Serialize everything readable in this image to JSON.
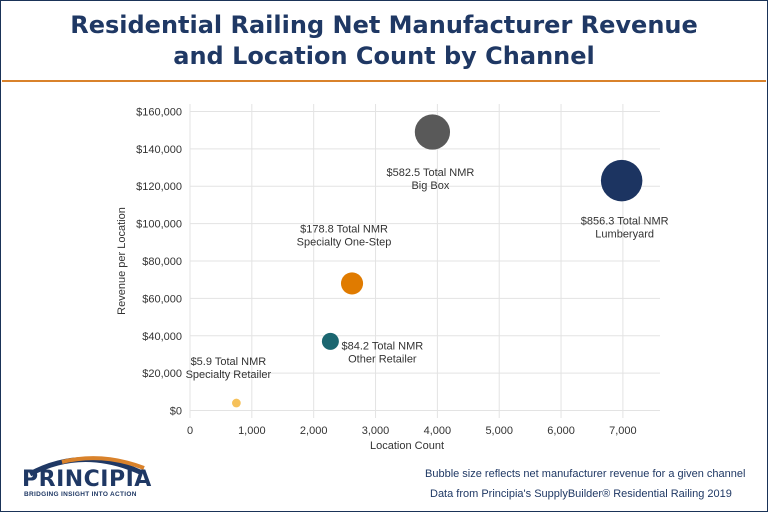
{
  "header": {
    "title_line1": "Residential Railing Net Manufacturer Revenue",
    "title_line2": "and Location Count by Channel"
  },
  "colors": {
    "title": "#1f3864",
    "rule": "#d9822b",
    "grid": "#e3e3e3",
    "text": "#333333"
  },
  "chart_data": {
    "type": "scatter",
    "xlabel": "Location Count",
    "ylabel": "Revenue per Location",
    "xlim": [
      0,
      7600
    ],
    "ylim": [
      -4000,
      164000
    ],
    "x_ticks": [
      0,
      1000,
      2000,
      3000,
      4000,
      5000,
      6000,
      7000
    ],
    "x_tick_labels": [
      "0",
      "1,000",
      "2,000",
      "3,000",
      "4,000",
      "5,000",
      "6,000",
      "7,000"
    ],
    "y_ticks": [
      0,
      20000,
      40000,
      60000,
      80000,
      100000,
      120000,
      140000,
      160000
    ],
    "y_tick_labels": [
      "$0",
      "$20,000",
      "$40,000",
      "$60,000",
      "$80,000",
      "$100,000",
      "$120,000",
      "$140,000",
      "$160,000"
    ],
    "grid": true,
    "points": [
      {
        "x": 750,
        "y": 4000,
        "size": 5.9,
        "color": "#f6c15a",
        "label_line1": "$5.9 Total NMR",
        "label_line2": "Specialty Retailer"
      },
      {
        "x": 2270,
        "y": 37000,
        "size": 84.2,
        "color": "#1b6670",
        "label_line1": "$84.2 Total NMR",
        "label_line2": "Other Retailer"
      },
      {
        "x": 2620,
        "y": 68000,
        "size": 178.8,
        "color": "#e07b00",
        "label_line1": "$178.8 Total NMR",
        "label_line2": "Specialty One-Step"
      },
      {
        "x": 3920,
        "y": 149000,
        "size": 582.5,
        "color": "#595959",
        "label_line1": "$582.5 Total NMR",
        "label_line2": "Big Box"
      },
      {
        "x": 6980,
        "y": 123000,
        "size": 856.3,
        "color": "#1c3461",
        "label_line1": "$856.3 Total NMR",
        "label_line2": "Lumberyard"
      }
    ]
  },
  "logo": {
    "name": "PRINCIPIA",
    "tagline": "BRIDGING INSIGHT INTO ACTION"
  },
  "footer": {
    "note1": "Bubble size reflects net manufacturer revenue for a given channel",
    "note2": "Data from Principia's SupplyBuilder® Residential Railing 2019"
  }
}
